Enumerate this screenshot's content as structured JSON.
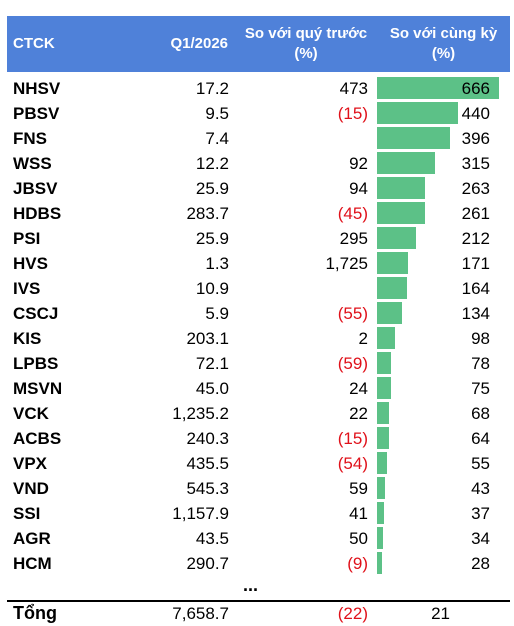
{
  "header": {
    "col_ctck": "CTCK",
    "col_q1": "Q1/2026",
    "col_prev": "So với quý trước (%)",
    "col_yoy": "So với cùng kỳ (%)"
  },
  "colors": {
    "header_bg": "#4F81D9",
    "bar": "#5CC187",
    "negative": "#e0111a"
  },
  "rows": [
    {
      "name": "NHSV",
      "q1": "17.2",
      "prev": "473",
      "yoy": "666",
      "yoy_value": 666
    },
    {
      "name": "PBSV",
      "q1": "9.5",
      "prev": "(15)",
      "yoy": "440",
      "yoy_value": 440
    },
    {
      "name": "FNS",
      "q1": "7.4",
      "prev": "",
      "yoy": "396",
      "yoy_value": 396
    },
    {
      "name": "WSS",
      "q1": "12.2",
      "prev": "92",
      "yoy": "315",
      "yoy_value": 315
    },
    {
      "name": "JBSV",
      "q1": "25.9",
      "prev": "94",
      "yoy": "263",
      "yoy_value": 263
    },
    {
      "name": "HDBS",
      "q1": "283.7",
      "prev": "(45)",
      "yoy": "261",
      "yoy_value": 261
    },
    {
      "name": "PSI",
      "q1": "25.9",
      "prev": "295",
      "yoy": "212",
      "yoy_value": 212
    },
    {
      "name": "HVS",
      "q1": "1.3",
      "prev": "1,725",
      "yoy": "171",
      "yoy_value": 171
    },
    {
      "name": "IVS",
      "q1": "10.9",
      "prev": "",
      "yoy": "164",
      "yoy_value": 164
    },
    {
      "name": "CSCJ",
      "q1": "5.9",
      "prev": "(55)",
      "yoy": "134",
      "yoy_value": 134
    },
    {
      "name": "KIS",
      "q1": "203.1",
      "prev": "2",
      "yoy": "98",
      "yoy_value": 98
    },
    {
      "name": "LPBS",
      "q1": "72.1",
      "prev": "(59)",
      "yoy": "78",
      "yoy_value": 78
    },
    {
      "name": "MSVN",
      "q1": "45.0",
      "prev": "24",
      "yoy": "75",
      "yoy_value": 75
    },
    {
      "name": "VCK",
      "q1": "1,235.2",
      "prev": "22",
      "yoy": "68",
      "yoy_value": 68
    },
    {
      "name": "ACBS",
      "q1": "240.3",
      "prev": "(15)",
      "yoy": "64",
      "yoy_value": 64
    },
    {
      "name": "VPX",
      "q1": "435.5",
      "prev": "(54)",
      "yoy": "55",
      "yoy_value": 55
    },
    {
      "name": "VND",
      "q1": "545.3",
      "prev": "59",
      "yoy": "43",
      "yoy_value": 43
    },
    {
      "name": "SSI",
      "q1": "1,157.9",
      "prev": "41",
      "yoy": "37",
      "yoy_value": 37
    },
    {
      "name": "AGR",
      "q1": "43.5",
      "prev": "50",
      "yoy": "34",
      "yoy_value": 34
    },
    {
      "name": "HCM",
      "q1": "290.7",
      "prev": "(9)",
      "yoy": "28",
      "yoy_value": 28
    }
  ],
  "ellipsis": "...",
  "total": {
    "name": "Tổng",
    "q1": "7,658.7",
    "prev": "(22)",
    "yoy": "21"
  }
}
